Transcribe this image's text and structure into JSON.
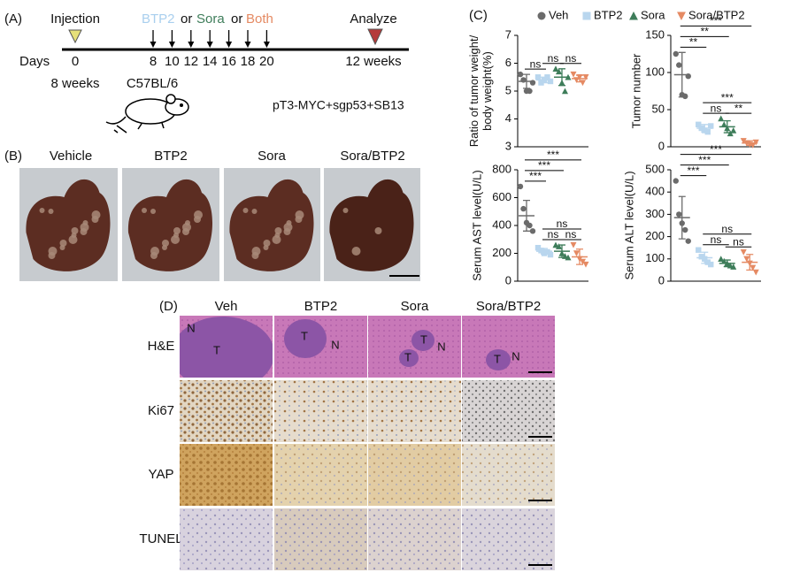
{
  "panel_a": {
    "label": "(A)",
    "injection": "Injection",
    "days_label": "Days",
    "start_day": "0",
    "start_age": "8 weeks",
    "treatment": [
      "BTP2",
      "or",
      "Sora",
      "or",
      "Both"
    ],
    "days": [
      "8",
      "10",
      "12",
      "14",
      "16",
      "18",
      "20"
    ],
    "analyze": "Analyze",
    "end_age": "12 weeks",
    "strain": "C57BL/6",
    "model": "pT3-MYC+sgp53+SB13"
  },
  "panel_b": {
    "label": "(B)",
    "groups": [
      "Vehicle",
      "BTP2",
      "Sora",
      "Sora/BTP2"
    ]
  },
  "panel_c": {
    "label": "(C)",
    "legend": [
      {
        "name": "Veh",
        "color": "#6b6b6b",
        "marker": "circle"
      },
      {
        "name": "BTP2",
        "color": "#b9d6ee",
        "marker": "square"
      },
      {
        "name": "Sora",
        "color": "#3e7d5a",
        "marker": "triangle"
      },
      {
        "name": "Sora/BTP2",
        "color": "#e58a63",
        "marker": "triangle-down"
      }
    ]
  },
  "chart_data": [
    {
      "type": "scatter",
      "ylabel": [
        "Ratio of tumor weight/",
        "body weight(%)"
      ],
      "ylim": [
        3,
        7
      ],
      "yticks": [
        3,
        4,
        5,
        6,
        7
      ],
      "groups": [
        {
          "values": [
            5.6,
            5.4,
            5.0,
            5.0,
            5.3
          ],
          "mean": 5.35,
          "sd": 0.25
        },
        {
          "values": [
            5.5,
            5.3,
            5.4,
            5.5,
            5.35
          ],
          "mean": 5.4,
          "sd": 0.1
        },
        {
          "values": [
            5.8,
            5.7,
            5.3,
            5.0,
            5.5
          ],
          "mean": 5.5,
          "sd": 0.3
        },
        {
          "values": [
            5.6,
            5.4,
            5.5,
            5.3,
            5.5
          ],
          "mean": 5.45,
          "sd": 0.12
        }
      ],
      "annotations": [
        {
          "pair": [
            0,
            1
          ],
          "label": "ns"
        },
        {
          "pair": [
            1,
            2
          ],
          "label": "ns"
        },
        {
          "pair": [
            2,
            3
          ],
          "label": "ns"
        }
      ]
    },
    {
      "type": "scatter",
      "ylabel": [
        "Tumor number"
      ],
      "ylim": [
        0,
        150
      ],
      "yticks": [
        0,
        50,
        100,
        150
      ],
      "groups": [
        {
          "values": [
            125,
            110,
            70,
            68,
            95
          ],
          "mean": 97,
          "sd": 30
        },
        {
          "values": [
            30,
            25,
            22,
            20,
            28
          ],
          "mean": 25,
          "sd": 5
        },
        {
          "values": [
            38,
            30,
            25,
            18,
            22
          ],
          "mean": 27,
          "sd": 8
        },
        {
          "values": [
            8,
            5,
            3,
            2,
            6
          ],
          "mean": 5,
          "sd": 3
        }
      ],
      "annotations": [
        {
          "pair": [
            1,
            2
          ],
          "label": "ns"
        },
        {
          "pair": [
            2,
            3
          ],
          "label": "**"
        },
        {
          "pair": [
            1,
            3
          ],
          "label": "***"
        },
        {
          "pair": [
            0,
            1
          ],
          "label": "**"
        },
        {
          "pair": [
            0,
            2
          ],
          "label": "**"
        },
        {
          "pair": [
            0,
            3
          ],
          "label": "***"
        }
      ]
    },
    {
      "type": "scatter",
      "ylabel": [
        "Serum AST level(U/L)"
      ],
      "ylim": [
        0,
        800
      ],
      "yticks": [
        0,
        200,
        400,
        600,
        800
      ],
      "groups": [
        {
          "values": [
            680,
            520,
            420,
            400,
            360
          ],
          "mean": 470,
          "sd": 110
        },
        {
          "values": [
            240,
            220,
            200,
            210,
            190
          ],
          "mean": 215,
          "sd": 20
        },
        {
          "values": [
            260,
            250,
            200,
            180,
            170
          ],
          "mean": 215,
          "sd": 45
        },
        {
          "values": [
            260,
            200,
            160,
            140,
            120
          ],
          "mean": 175,
          "sd": 55
        }
      ],
      "annotations": [
        {
          "pair": [
            1,
            2
          ],
          "label": "ns"
        },
        {
          "pair": [
            2,
            3
          ],
          "label": "ns"
        },
        {
          "pair": [
            1,
            3
          ],
          "label": "ns"
        },
        {
          "pair": [
            0,
            1
          ],
          "label": "***"
        },
        {
          "pair": [
            0,
            2
          ],
          "label": "***"
        },
        {
          "pair": [
            0,
            3
          ],
          "label": "***"
        }
      ]
    },
    {
      "type": "scatter",
      "ylabel": [
        "Serum ALT level(U/L)"
      ],
      "ylim": [
        0,
        500
      ],
      "yticks": [
        0,
        100,
        200,
        300,
        400,
        500
      ],
      "groups": [
        {
          "values": [
            450,
            300,
            260,
            230,
            180
          ],
          "mean": 285,
          "sd": 95
        },
        {
          "values": [
            140,
            110,
            100,
            85,
            75
          ],
          "mean": 105,
          "sd": 25
        },
        {
          "values": [
            100,
            90,
            80,
            70,
            65
          ],
          "mean": 80,
          "sd": 15
        },
        {
          "values": [
            130,
            100,
            80,
            60,
            40
          ],
          "mean": 85,
          "sd": 35
        }
      ],
      "annotations": [
        {
          "pair": [
            1,
            2
          ],
          "label": "ns"
        },
        {
          "pair": [
            2,
            3
          ],
          "label": "ns"
        },
        {
          "pair": [
            1,
            3
          ],
          "label": "ns"
        },
        {
          "pair": [
            0,
            1
          ],
          "label": "***"
        },
        {
          "pair": [
            0,
            2
          ],
          "label": "***"
        },
        {
          "pair": [
            0,
            3
          ],
          "label": "***"
        }
      ]
    }
  ],
  "panel_d": {
    "label": "(D)",
    "columns": [
      "Veh",
      "BTP2",
      "Sora",
      "Sora/BTP2"
    ],
    "rows": [
      "H&E",
      "Ki67",
      "YAP",
      "TUNEL"
    ],
    "he_regions": [
      [
        "N",
        "T"
      ],
      [
        "T",
        "N"
      ],
      [
        "T",
        "T",
        "N"
      ],
      [
        "T",
        "N"
      ]
    ]
  }
}
